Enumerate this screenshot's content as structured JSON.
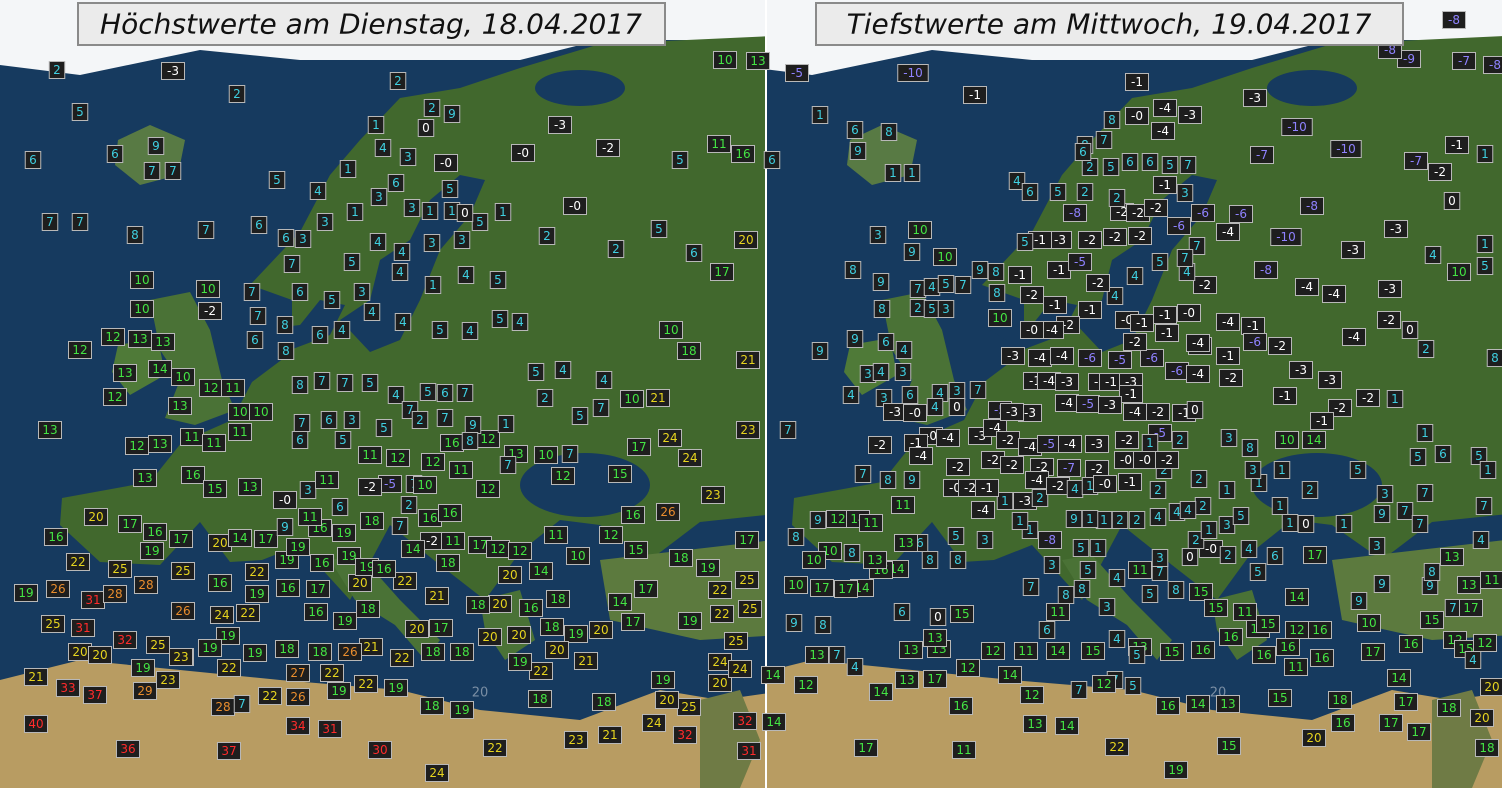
{
  "panels": [
    {
      "title": "Höchstwerte am Dienstag, 18.04.2017",
      "grid_label": "20",
      "stations": [
        2,
        -3,
        2,
        5,
        6,
        2,
        6,
        9,
        7,
        7,
        5,
        4,
        3,
        {
          "value": 0,
          "label": "-0"
        },
        {
          "value": 0,
          "label": "-0"
        },
        -3,
        -2,
        {
          "value": 0,
          "label": "-0"
        },
        11,
        16,
        5,
        10,
        13,
        7,
        7,
        8,
        7,
        6,
        6,
        2,
        2,
        5,
        6,
        20,
        17,
        10,
        10,
        10,
        -2,
        12,
        13,
        13,
        12,
        13,
        14,
        10,
        12,
        11,
        12,
        13,
        10,
        10,
        13,
        12,
        13,
        11,
        11,
        11,
        13,
        16,
        15,
        13,
        {
          "value": 0,
          "label": "-0"
        },
        20,
        17,
        16,
        17,
        20,
        14,
        17,
        16,
        22,
        25,
        19,
        25,
        19,
        26,
        31,
        28,
        28,
        26,
        24,
        22,
        25,
        31,
        32,
        25,
        19,
        19,
        20,
        20,
        21,
        33,
        37,
        29,
        23,
        40,
        36,
        37,
        28,
        34,
        31,
        30,
        24,
        22,
        23,
        21,
        24,
        32,
        32,
        31,
        25,
        20,
        20,
        12,
        13,
        10,
        12,
        17,
        24,
        23,
        24,
        15,
        23,
        21,
        10,
        18,
        21,
        10,
        11,
        10,
        12,
        16,
        26,
        15,
        18,
        17,
        19,
        25,
        25,
        22,
        22,
        17,
        14,
        19,
        25,
        24,
        24,
        20,
        19,
        17,
        18,
        18,
        16,
        20,
        18,
        20,
        20,
        22,
        19,
        20,
        21,
        18,
        18,
        19,
        16,
        16,
        -2,
        11,
        17,
        12,
        12,
        18,
        20,
        14,
        22,
        21,
        20,
        17,
        18,
        18,
        22,
        21,
        19,
        16,
        17,
        20,
        18,
        16,
        19,
        18,
        18,
        26,
        22,
        27,
        26,
        19,
        22,
        19,
        18,
        19,
        19,
        16,
        22,
        19,
        16,
        19,
        19,
        16,
        14,
        18,
        16,
        19,
        19,
        19,
        19,
        23,
        22,
        22,
        7,
        8,
        7,
        7,
        5,
        4,
        7,
        5,
        6,
        7,
        7,
        6,
        3,
        5,
        2,
        7,
        6,
        5,
        11,
        12,
        12,
        11,
        7,
        -5,
        -2,
        6,
        3,
        11,
        10,
        2,
        11,
        9,
        7,
        6,
        4,
        4,
        4,
        5,
        4,
        5,
        4,
        5,
        4,
        1,
        4,
        5,
        6,
        5,
        3,
        4,
        3,
        3,
        5,
        1,
        4,
        4,
        1,
        1,
        0,
        2,
        9,
        3,
        6,
        3,
        1,
        1,
        0,
        1,
        5,
        3,
        3,
        7,
        7,
        7,
        6,
        8,
        8,
        5,
        4,
        4,
        2,
        7,
        5,
        1,
        9,
        16,
        8,
        7,
        7,
        12
      ]
    },
    {
      "title": "Tiefstwerte am Mittwoch, 19.04.2017",
      "grid_label": "20",
      "stations": [
        -5,
        -10,
        -1,
        1,
        6,
        6,
        8,
        9,
        1,
        1,
        4,
        5,
        -1,
        {
          "value": 0,
          "label": "-0"
        },
        -4,
        -3,
        -4,
        -3,
        -10,
        -10,
        -7,
        -7,
        -2,
        -1,
        1,
        0,
        -8,
        -9,
        -7,
        -8,
        -8,
        -8,
        -10,
        -6,
        -4,
        -6,
        -6,
        -8,
        -4,
        -4,
        -3,
        -3,
        -3,
        -2,
        -4,
        0,
        4,
        10,
        1,
        5,
        8,
        2,
        -3,
        -3,
        -2,
        -2,
        -1,
        -1,
        1,
        1,
        6,
        5,
        5,
        1,
        5,
        3,
        9,
        7,
        7,
        7,
        7,
        4,
        3,
        13,
        13,
        11,
        9,
        7,
        17,
        15,
        12,
        15,
        12,
        4,
        20,
        20,
        18,
        17,
        18,
        17,
        14,
        17,
        18,
        15,
        20,
        16,
        15,
        19,
        22,
        11,
        17,
        16,
        13,
        14,
        7,
        7,
        12,
        14,
        12,
        17,
        12,
        14,
        14,
        14,
        13,
        13,
        13,
        12,
        11,
        14,
        15,
        13,
        15,
        16,
        16,
        16,
        16,
        16,
        11,
        16,
        17,
        16,
        14,
        13,
        16,
        12,
        5,
        15,
        15,
        11,
        15,
        12,
        16,
        10,
        5,
        14,
        6,
        4,
        17,
        9,
        9,
        8,
        5,
        4,
        6,
        11,
        8,
        8,
        3,
        5,
        8,
        5,
        4,
        11,
        7,
        3,
        7,
        5,
        1,
        3,
        0,
        {
          "value": 0,
          "label": "-0"
        },
        2,
        2,
        1,
        3,
        5,
        2,
        1,
        2,
        1,
        1,
        3,
        3,
        8,
        10,
        14,
        1,
        2,
        1,
        0,
        1,
        4,
        4,
        4,
        2,
        2,
        2,
        2,
        1,
        1,
        9,
        -8,
        1,
        1,
        1,
        -3,
        2,
        3,
        3,
        5,
        8,
        8,
        6,
        13,
        14,
        16,
        14,
        17,
        17,
        10,
        9,
        8,
        7,
        13,
        4,
        6,
        0,
        15,
        13,
        13,
        8,
        10,
        10,
        9,
        12,
        14,
        11,
        11,
        8,
        9,
        7,
        8,
        7,
        9,
        9,
        6,
        4,
        3,
        4,
        3,
        4,
        3,
        6,
        4,
        3,
        7,
        4,
        0,
        -5,
        -3,
        {
          "value": 0,
          "label": "-0"
        },
        {
          "value": 0,
          "label": "-0"
        },
        -1,
        -2,
        -4,
        -3,
        -4,
        -3,
        -3,
        -1,
        -4,
        -3,
        -1,
        -1,
        -3,
        -1,
        -4,
        -5,
        -3,
        -4,
        -2,
        -5,
        -1,
        0,
        -2,
        -4,
        -5,
        -4,
        -3,
        -2,
        1,
        2,
        -2,
        -2,
        -2,
        -7,
        -2,
        {
          "value": 0,
          "label": "-0"
        },
        {
          "value": 0,
          "label": "-0"
        },
        -2,
        -4,
        -2,
        4,
        1,
        {
          "value": 0,
          "label": "-0"
        },
        -1,
        {
          "value": 0,
          "label": "-0"
        },
        -2,
        -1,
        -4,
        -4,
        -2,
        -3,
        -4,
        -4,
        -6,
        -5,
        -6,
        -6,
        -4,
        -2,
        -4,
        -1,
        -1,
        -2,
        -4,
        -6,
        -4,
        -1,
        -2,
        {
          "value": 0,
          "label": "-0"
        },
        -1,
        -1,
        {
          "value": 0,
          "label": "-0"
        },
        -2,
        4,
        5,
        4,
        4,
        -2,
        -1,
        -2,
        -4,
        {
          "value": 0,
          "label": "-0"
        },
        -1,
        -2,
        -1,
        -1,
        -5,
        -2,
        -2,
        -2,
        -2,
        -2,
        -2,
        -1,
        3,
        5,
        6,
        6,
        5,
        2,
        2,
        2,
        -8,
        -3,
        -1,
        5,
        6,
        8,
        8,
        7,
        7,
        7,
        7,
        6,
        10,
        10,
        9,
        9,
        8,
        8,
        10,
        3,
        8,
        9,
        7,
        4,
        5,
        7,
        8,
        2,
        5,
        3
      ]
    }
  ]
}
